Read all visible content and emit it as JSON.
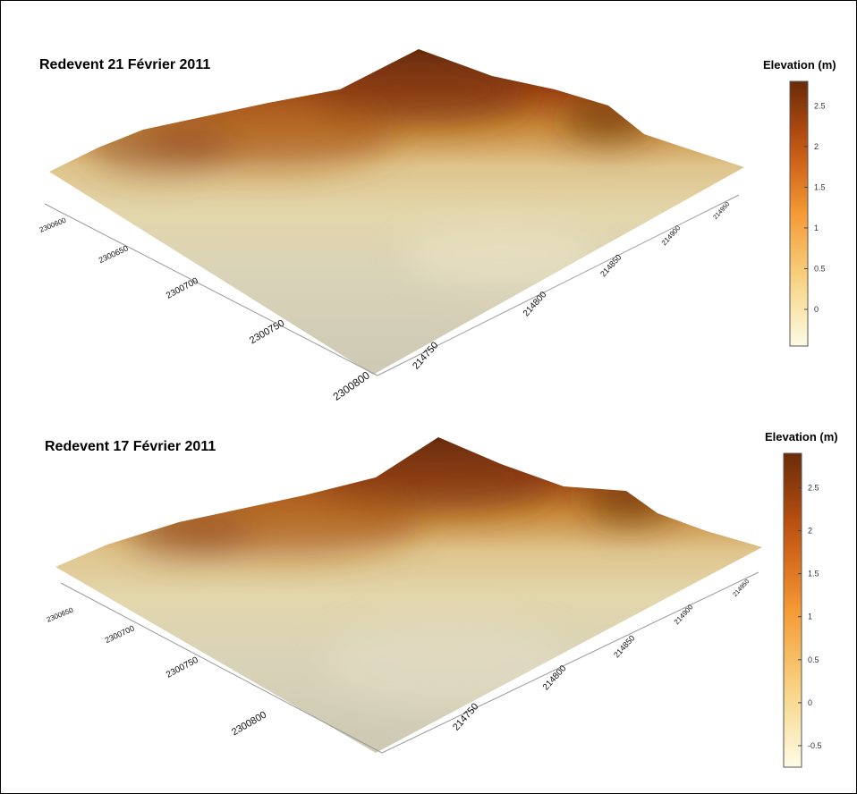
{
  "chart_data": [
    {
      "type": "surface",
      "title": "Redevent 21 Février 2011",
      "colorbar": {
        "title": "Elevation (m)",
        "ticks": [
          "2.5",
          "2",
          "1.5",
          "1",
          "0.5",
          "0"
        ],
        "tick_values": [
          2.5,
          2,
          1.5,
          1,
          0.5,
          0
        ],
        "range": [
          -0.45,
          2.8
        ]
      },
      "axes": {
        "y_ticks": [
          "2300800",
          "2300750",
          "2300700",
          "2300650",
          "2300600"
        ],
        "x_ticks": [
          "214750",
          "214800",
          "214850",
          "214900",
          "214950"
        ]
      },
      "colors": {
        "low": "#fdfbe6",
        "mid": "#f59a35",
        "high": "#6a2b09"
      }
    },
    {
      "type": "surface",
      "title": "Redevent 17 Février 2011",
      "colorbar": {
        "title": "Elevation (m)",
        "ticks": [
          "2.5",
          "2",
          "1.5",
          "1",
          "0.5",
          "0",
          "-0.5"
        ],
        "tick_values": [
          2.5,
          2,
          1.5,
          1,
          0.5,
          0,
          -0.5
        ],
        "range": [
          -0.75,
          2.9
        ]
      },
      "axes": {
        "y_ticks": [
          "2300800",
          "2300750",
          "2300700",
          "2300650"
        ],
        "x_ticks": [
          "214750",
          "214800",
          "214850",
          "214900",
          "214950"
        ]
      },
      "colors": {
        "low": "#fdfbe6",
        "mid": "#f59a35",
        "high": "#6a2b09"
      }
    }
  ]
}
